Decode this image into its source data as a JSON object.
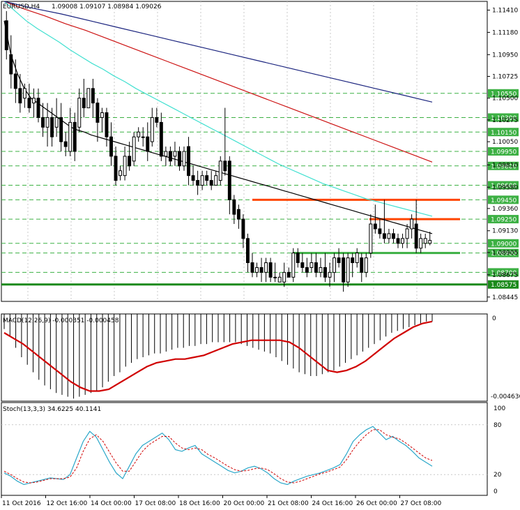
{
  "header": {
    "symbol_label": "EURUSD,H4",
    "ohlc_label": "1.09008 1.09107 1.08984 1.09026"
  },
  "chart_data": {
    "type": "candlestick",
    "symbol": "EURUSD",
    "timeframe": "H4",
    "ylim": [
      1.084,
      1.115
    ],
    "price_ticks": [
      1.1141,
      1.1118,
      1.1095,
      1.10725,
      1.105,
      1.10275,
      1.1005,
      1.0981,
      1.0958,
      1.0936,
      1.0913,
      1.08905,
      1.08675,
      1.08445
    ],
    "x_ticks": [
      "11 Oct 2016",
      "12 Oct 16:00",
      "14 Oct 00:00",
      "17 Oct 08:00",
      "18 Oct 16:00",
      "20 Oct 00:00",
      "21 Oct 08:00",
      "24 Oct 16:00",
      "26 Oct 00:00",
      "27 Oct 08:00"
    ],
    "candles": [
      {
        "o": 1.113,
        "h": 1.114,
        "l": 1.109,
        "c": 1.11
      },
      {
        "o": 1.1095,
        "h": 1.1115,
        "l": 1.106,
        "c": 1.1075
      },
      {
        "o": 1.1075,
        "h": 1.109,
        "l": 1.1045,
        "c": 1.106
      },
      {
        "o": 1.106,
        "h": 1.1075,
        "l": 1.1035,
        "c": 1.1045
      },
      {
        "o": 1.105,
        "h": 1.1065,
        "l": 1.104,
        "c": 1.106
      },
      {
        "o": 1.105,
        "h": 1.1065,
        "l": 1.1035,
        "c": 1.104
      },
      {
        "o": 1.1045,
        "h": 1.106,
        "l": 1.103,
        "c": 1.105
      },
      {
        "o": 1.105,
        "h": 1.106,
        "l": 1.1025,
        "c": 1.103
      },
      {
        "o": 1.103,
        "h": 1.1045,
        "l": 1.101,
        "c": 1.102
      },
      {
        "o": 1.102,
        "h": 1.1045,
        "l": 1.1,
        "c": 1.103
      },
      {
        "o": 1.103,
        "h": 1.104,
        "l": 1.1,
        "c": 1.101
      },
      {
        "o": 1.102,
        "h": 1.105,
        "l": 1.101,
        "c": 1.103
      },
      {
        "o": 1.103,
        "h": 1.1045,
        "l": 1.0995,
        "c": 1.1005
      },
      {
        "o": 1.1005,
        "h": 1.1015,
        "l": 1.099,
        "c": 1.1
      },
      {
        "o": 1.0995,
        "h": 1.104,
        "l": 1.099,
        "c": 1.1025
      },
      {
        "o": 1.1025,
        "h": 1.1035,
        "l": 1.0985,
        "c": 1.0995
      },
      {
        "o": 1.102,
        "h": 1.106,
        "l": 1.1015,
        "c": 1.105
      },
      {
        "o": 1.105,
        "h": 1.107,
        "l": 1.103,
        "c": 1.104
      },
      {
        "o": 1.104,
        "h": 1.106,
        "l": 1.104,
        "c": 1.106
      },
      {
        "o": 1.106,
        "h": 1.107,
        "l": 1.103,
        "c": 1.1045
      },
      {
        "o": 1.1045,
        "h": 1.105,
        "l": 1.1005,
        "c": 1.1025
      },
      {
        "o": 1.103,
        "h": 1.104,
        "l": 1.1015,
        "c": 1.1035
      },
      {
        "o": 1.1035,
        "h": 1.104,
        "l": 1.1,
        "c": 1.101
      },
      {
        "o": 1.101,
        "h": 1.1025,
        "l": 1.098,
        "c": 1.099
      },
      {
        "o": 1.099,
        "h": 1.1,
        "l": 1.096,
        "c": 1.0965
      },
      {
        "o": 1.097,
        "h": 1.098,
        "l": 1.0965,
        "c": 1.0975
      },
      {
        "o": 1.097,
        "h": 1.1,
        "l": 1.0965,
        "c": 1.099
      },
      {
        "o": 1.099,
        "h": 1.1005,
        "l": 1.0975,
        "c": 1.098
      },
      {
        "o": 1.0985,
        "h": 1.1015,
        "l": 1.098,
        "c": 1.101
      },
      {
        "o": 1.101,
        "h": 1.102,
        "l": 1.1005,
        "c": 1.1015
      },
      {
        "o": 1.101,
        "h": 1.102,
        "l": 1.1,
        "c": 1.101
      },
      {
        "o": 1.101,
        "h": 1.1025,
        "l": 1.0985,
        "c": 1.0995
      },
      {
        "o": 1.1005,
        "h": 1.104,
        "l": 1.1,
        "c": 1.103
      },
      {
        "o": 1.103,
        "h": 1.104,
        "l": 1.102,
        "c": 1.1025
      },
      {
        "o": 1.1025,
        "h": 1.1035,
        "l": 1.0985,
        "c": 1.099
      },
      {
        "o": 1.099,
        "h": 1.1,
        "l": 1.098,
        "c": 1.0995
      },
      {
        "o": 1.0995,
        "h": 1.1,
        "l": 1.098,
        "c": 1.0985
      },
      {
        "o": 1.099,
        "h": 1.1005,
        "l": 1.098,
        "c": 1.0995
      },
      {
        "o": 1.0995,
        "h": 1.1,
        "l": 1.0975,
        "c": 1.098
      },
      {
        "o": 1.098,
        "h": 1.1,
        "l": 1.0975,
        "c": 1.0995
      },
      {
        "o": 1.1,
        "h": 1.101,
        "l": 1.096,
        "c": 1.097
      },
      {
        "o": 1.097,
        "h": 1.098,
        "l": 1.096,
        "c": 1.0965
      },
      {
        "o": 1.0965,
        "h": 1.0975,
        "l": 1.095,
        "c": 1.096
      },
      {
        "o": 1.096,
        "h": 1.0975,
        "l": 1.0955,
        "c": 1.097
      },
      {
        "o": 1.097,
        "h": 1.0975,
        "l": 1.096,
        "c": 1.0965
      },
      {
        "o": 1.0965,
        "h": 1.0975,
        "l": 1.0955,
        "c": 1.096
      },
      {
        "o": 1.096,
        "h": 1.0975,
        "l": 1.096,
        "c": 1.097
      },
      {
        "o": 1.0965,
        "h": 1.099,
        "l": 1.096,
        "c": 1.0985
      },
      {
        "o": 1.0985,
        "h": 1.104,
        "l": 1.097,
        "c": 1.0975
      },
      {
        "o": 1.0985,
        "h": 1.099,
        "l": 1.093,
        "c": 1.0945
      },
      {
        "o": 1.0945,
        "h": 1.095,
        "l": 1.092,
        "c": 1.093
      },
      {
        "o": 1.0935,
        "h": 1.094,
        "l": 1.0915,
        "c": 1.0925
      },
      {
        "o": 1.0925,
        "h": 1.093,
        "l": 1.0895,
        "c": 1.0905
      },
      {
        "o": 1.0905,
        "h": 1.091,
        "l": 1.087,
        "c": 1.088
      },
      {
        "o": 1.088,
        "h": 1.089,
        "l": 1.0865,
        "c": 1.087
      },
      {
        "o": 1.087,
        "h": 1.088,
        "l": 1.0865,
        "c": 1.0875
      },
      {
        "o": 1.0875,
        "h": 1.0885,
        "l": 1.086,
        "c": 1.087
      },
      {
        "o": 1.087,
        "h": 1.0885,
        "l": 1.086,
        "c": 1.088
      },
      {
        "o": 1.088,
        "h": 1.0885,
        "l": 1.086,
        "c": 1.0865
      },
      {
        "o": 1.0865,
        "h": 1.088,
        "l": 1.086,
        "c": 1.0865
      },
      {
        "o": 1.086,
        "h": 1.087,
        "l": 1.086,
        "c": 1.0865
      },
      {
        "o": 1.086,
        "h": 1.088,
        "l": 1.0855,
        "c": 1.087
      },
      {
        "o": 1.087,
        "h": 1.0875,
        "l": 1.0865,
        "c": 1.0865
      },
      {
        "o": 1.0865,
        "h": 1.0895,
        "l": 1.086,
        "c": 1.089
      },
      {
        "o": 1.089,
        "h": 1.0895,
        "l": 1.0875,
        "c": 1.088
      },
      {
        "o": 1.088,
        "h": 1.089,
        "l": 1.087,
        "c": 1.0875
      },
      {
        "o": 1.0875,
        "h": 1.0885,
        "l": 1.0865,
        "c": 1.087
      },
      {
        "o": 1.0875,
        "h": 1.089,
        "l": 1.087,
        "c": 1.088
      },
      {
        "o": 1.088,
        "h": 1.089,
        "l": 1.0865,
        "c": 1.087
      },
      {
        "o": 1.087,
        "h": 1.0885,
        "l": 1.0865,
        "c": 1.0875
      },
      {
        "o": 1.0875,
        "h": 1.089,
        "l": 1.086,
        "c": 1.0865
      },
      {
        "o": 1.0865,
        "h": 1.088,
        "l": 1.0855,
        "c": 1.087
      },
      {
        "o": 1.087,
        "h": 1.089,
        "l": 1.086,
        "c": 1.0885
      },
      {
        "o": 1.0885,
        "h": 1.0895,
        "l": 1.0875,
        "c": 1.088
      },
      {
        "o": 1.0885,
        "h": 1.089,
        "l": 1.085,
        "c": 1.086
      },
      {
        "o": 1.086,
        "h": 1.089,
        "l": 1.0855,
        "c": 1.0885
      },
      {
        "o": 1.0885,
        "h": 1.089,
        "l": 1.0865,
        "c": 1.088
      },
      {
        "o": 1.088,
        "h": 1.0895,
        "l": 1.0875,
        "c": 1.089
      },
      {
        "o": 1.0885,
        "h": 1.089,
        "l": 1.086,
        "c": 1.087
      },
      {
        "o": 1.087,
        "h": 1.089,
        "l": 1.0865,
        "c": 1.0885
      },
      {
        "o": 1.089,
        "h": 1.093,
        "l": 1.0885,
        "c": 1.092
      },
      {
        "o": 1.092,
        "h": 1.094,
        "l": 1.091,
        "c": 1.0915
      },
      {
        "o": 1.0915,
        "h": 1.0925,
        "l": 1.0905,
        "c": 1.091
      },
      {
        "o": 1.091,
        "h": 1.0945,
        "l": 1.09,
        "c": 1.0905
      },
      {
        "o": 1.0905,
        "h": 1.0915,
        "l": 1.09,
        "c": 1.091
      },
      {
        "o": 1.091,
        "h": 1.0915,
        "l": 1.09,
        "c": 1.0905
      },
      {
        "o": 1.0905,
        "h": 1.091,
        "l": 1.0895,
        "c": 1.09
      },
      {
        "o": 1.09,
        "h": 1.091,
        "l": 1.0895,
        "c": 1.0905
      },
      {
        "o": 1.0905,
        "h": 1.092,
        "l": 1.0895,
        "c": 1.0915
      },
      {
        "o": 1.0915,
        "h": 1.093,
        "l": 1.0905,
        "c": 1.0925
      },
      {
        "o": 1.092,
        "h": 1.0945,
        "l": 1.089,
        "c": 1.0895
      },
      {
        "o": 1.0895,
        "h": 1.091,
        "l": 1.089,
        "c": 1.0905
      },
      {
        "o": 1.09,
        "h": 1.091,
        "l": 1.0895,
        "c": 1.0905
      },
      {
        "o": 1.09,
        "h": 1.0912,
        "l": 1.0898,
        "c": 1.0903
      }
    ],
    "moving_averages": [
      {
        "name": "ma-black",
        "color": "#000000",
        "values": [
          1.113,
          1.1095,
          1.1075,
          1.106,
          1.105,
          1.1045,
          1.104,
          1.1035,
          1.103,
          1.1025,
          1.102,
          1.1017,
          1.1015,
          1.1012,
          1.101,
          1.1008,
          1.1006,
          1.1004,
          1.1002,
          1.1,
          1.0998,
          1.0996,
          1.0994,
          1.0992,
          1.099,
          1.0988,
          1.0986,
          1.0984,
          1.0982,
          1.098,
          1.0978,
          1.0976,
          1.0974,
          1.0972,
          1.097,
          1.0968,
          1.0966,
          1.0964,
          1.0962,
          1.096,
          1.0958,
          1.0956,
          1.0954,
          1.0952,
          1.095,
          1.0948,
          1.0946,
          1.0944,
          1.0942,
          1.094,
          1.0938,
          1.0936,
          1.0934,
          1.0932,
          1.093,
          1.0928,
          1.0926,
          1.0924,
          1.0922,
          1.092,
          1.0918,
          1.0916,
          1.0914,
          1.0912,
          1.091
        ]
      },
      {
        "name": "ma-teal",
        "color": "#40e0d0",
        "values": [
          1.115,
          1.114,
          1.113,
          1.1122,
          1.1115,
          1.1108,
          1.11,
          1.1093,
          1.1086,
          1.108,
          1.1073,
          1.1067,
          1.106,
          1.1054,
          1.1048,
          1.1042,
          1.1036,
          1.103,
          1.1024,
          1.1018,
          1.1012,
          1.1006,
          1.1,
          1.0994,
          1.0988,
          1.0982,
          1.0977,
          1.0972,
          1.0967,
          1.0962,
          1.0958,
          1.0954,
          1.095,
          1.0946,
          1.0943,
          1.094,
          1.0937,
          1.0934,
          1.0931,
          1.0928
        ]
      },
      {
        "name": "ma-red",
        "color": "#cc1111",
        "values": [
          1.115,
          1.1142,
          1.1135,
          1.1127,
          1.112,
          1.1112,
          1.1104,
          1.1096,
          1.1088,
          1.108,
          1.1072,
          1.1064,
          1.1056,
          1.1048,
          1.104,
          1.1032,
          1.1024,
          1.1016,
          1.1008,
          1.1,
          1.0992,
          1.0984
        ]
      },
      {
        "name": "ma-blue",
        "color": "#1a237e",
        "values": [
          1.115,
          1.1143,
          1.1137,
          1.113,
          1.1123,
          1.1116,
          1.1109,
          1.1102,
          1.1095,
          1.1088,
          1.1081,
          1.1074,
          1.1067,
          1.106,
          1.1053,
          1.1046
        ]
      }
    ],
    "horizontal_levels": [
      {
        "price": 1.1055,
        "label": "1.10550",
        "color": "#3cb043"
      },
      {
        "price": 1.103,
        "label": "1.10300",
        "color": "#3cb043"
      },
      {
        "price": 1.1015,
        "label": "1.10150",
        "color": "#3cb043"
      },
      {
        "price": 1.0995,
        "label": "1.09950",
        "color": "#3cb043"
      },
      {
        "price": 1.098,
        "label": "1.09800",
        "color": "#3cb043"
      },
      {
        "price": 1.096,
        "label": "1.09600",
        "color": "#3cb043"
      },
      {
        "price": 1.0945,
        "label": "1.09450",
        "color": "#3cb043"
      },
      {
        "price": 1.0925,
        "label": "1.09250",
        "color": "#3cb043"
      },
      {
        "price": 1.09,
        "label": "1.09000",
        "color": "#3cb043"
      },
      {
        "price": 1.089,
        "label": "1.08900",
        "color": "#3cb043"
      },
      {
        "price": 1.087,
        "label": "1.08700",
        "color": "#3cb043"
      },
      {
        "price": 1.08575,
        "label": "1.08575",
        "color": "#1b8a1b"
      }
    ],
    "resistance_lines": [
      {
        "price": 1.0945,
        "color": "#ff4500"
      },
      {
        "price": 1.0925,
        "color": "#ff4500"
      },
      {
        "price": 1.089,
        "color": "#3cb043"
      },
      {
        "price": 1.08575,
        "color": "#1b8a1b"
      }
    ],
    "macd": {
      "label": "MACD(12,26,9) -0.000351 -0.000458",
      "top_label": "0",
      "bottom_label": "-0.004636",
      "ylim": [
        -0.004636,
        0.0
      ],
      "histogram": [
        -0.0008,
        -0.0012,
        -0.0018,
        -0.0023,
        -0.0027,
        -0.0031,
        -0.0035,
        -0.0038,
        -0.004,
        -0.0042,
        -0.0043,
        -0.0044,
        -0.0045,
        -0.0044,
        -0.0043,
        -0.0042,
        -0.0041,
        -0.0039,
        -0.0036,
        -0.0033,
        -0.0031,
        -0.0028,
        -0.0026,
        -0.0024,
        -0.0023,
        -0.0022,
        -0.0021,
        -0.0021,
        -0.002,
        -0.0019,
        -0.0018,
        -0.0018,
        -0.0017,
        -0.0017,
        -0.0016,
        -0.0016,
        -0.0015,
        -0.0015,
        -0.0015,
        -0.0015,
        -0.0015,
        -0.0016,
        -0.0017,
        -0.0018,
        -0.0019,
        -0.002,
        -0.0021,
        -0.0023,
        -0.0025,
        -0.0027,
        -0.0029,
        -0.0031,
        -0.0032,
        -0.0033,
        -0.0033,
        -0.0032,
        -0.0031,
        -0.003,
        -0.0028,
        -0.0026,
        -0.0024,
        -0.0022,
        -0.002,
        -0.0018,
        -0.0016,
        -0.0014,
        -0.0012,
        -0.001,
        -0.0009,
        -0.0008,
        -0.0007,
        -0.0006,
        -0.0005,
        -0.0004,
        -0.0004
      ],
      "signal": [
        -0.001,
        -0.0013,
        -0.0016,
        -0.002,
        -0.0024,
        -0.0028,
        -0.0032,
        -0.0036,
        -0.0039,
        -0.0041,
        -0.0041,
        -0.004,
        -0.0037,
        -0.0034,
        -0.0031,
        -0.0028,
        -0.0026,
        -0.0025,
        -0.0024,
        -0.0024,
        -0.0023,
        -0.0022,
        -0.002,
        -0.0018,
        -0.0016,
        -0.0015,
        -0.0014,
        -0.0014,
        -0.0014,
        -0.0014,
        -0.0015,
        -0.0018,
        -0.0022,
        -0.0026,
        -0.003,
        -0.0031,
        -0.003,
        -0.0028,
        -0.0025,
        -0.0021,
        -0.0017,
        -0.0013,
        -0.001,
        -0.0007,
        -0.0005,
        -0.0004
      ]
    },
    "stochastic": {
      "label": "Stoch(13,3,3) 34.6225 40.1141",
      "levels": [
        100,
        80,
        20,
        0
      ],
      "ylim": [
        0,
        100
      ],
      "main": [
        22,
        18,
        12,
        8,
        10,
        12,
        14,
        16,
        15,
        14,
        20,
        40,
        60,
        72,
        65,
        50,
        35,
        22,
        15,
        30,
        45,
        55,
        60,
        65,
        70,
        62,
        50,
        48,
        52,
        55,
        45,
        40,
        35,
        30,
        25,
        22,
        24,
        28,
        30,
        27,
        22,
        15,
        10,
        8,
        12,
        15,
        18,
        20,
        22,
        25,
        28,
        32,
        45,
        60,
        68,
        74,
        78,
        70,
        62,
        66,
        60,
        55,
        48,
        40,
        35,
        30
      ],
      "signal": [
        24,
        20,
        15,
        11,
        10,
        11,
        13,
        15,
        15,
        15,
        17,
        28,
        48,
        63,
        68,
        60,
        47,
        34,
        24,
        24,
        36,
        48,
        56,
        61,
        66,
        66,
        58,
        52,
        50,
        52,
        50,
        44,
        40,
        35,
        30,
        26,
        24,
        25,
        27,
        28,
        26,
        21,
        15,
        11,
        10,
        12,
        15,
        18,
        21,
        23,
        26,
        29,
        38,
        50,
        60,
        68,
        74,
        74,
        68,
        65,
        63,
        58,
        52,
        46,
        40,
        37
      ]
    }
  }
}
